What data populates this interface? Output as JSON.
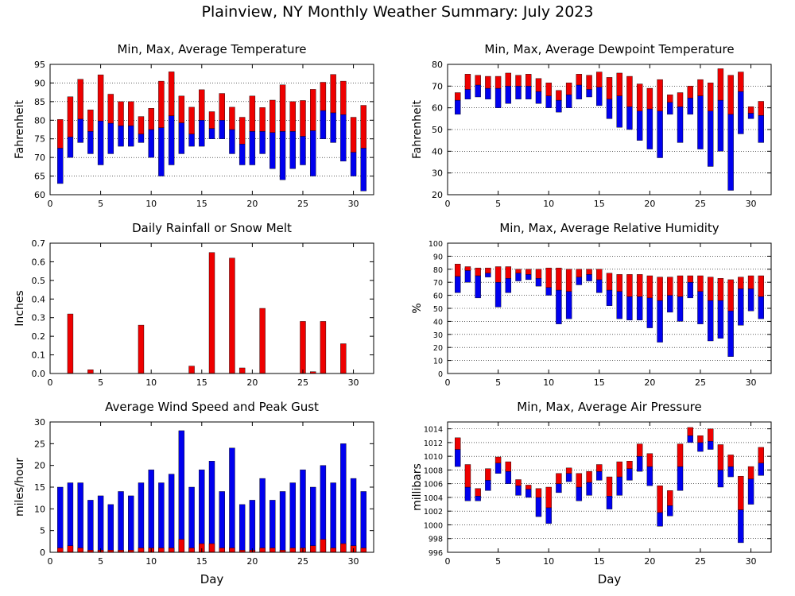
{
  "title": "Plainview, NY Monthly Weather Summary: July 2023",
  "colors": {
    "min_segment": "#0000ee",
    "max_segment": "#ee0000",
    "frame": "#000000",
    "grid": "#000000"
  },
  "chart_data": [
    {
      "type": "bar",
      "title": "Min, Max, Average Temperature",
      "xlabel": "",
      "ylabel": "Fahrenheit",
      "xlim": [
        0,
        32
      ],
      "ylim": [
        60,
        95
      ],
      "xticks": [
        0,
        5,
        10,
        15,
        20,
        25,
        30
      ],
      "yticks": [
        60,
        65,
        70,
        75,
        80,
        85,
        90,
        95
      ],
      "grid": true,
      "x": [
        1,
        2,
        3,
        4,
        5,
        6,
        7,
        8,
        9,
        10,
        11,
        12,
        13,
        14,
        15,
        16,
        17,
        18,
        19,
        20,
        21,
        22,
        23,
        24,
        25,
        26,
        27,
        28,
        29,
        30,
        31
      ],
      "series": [
        {
          "role": "min",
          "values": [
            63,
            70,
            74,
            71,
            68,
            71,
            73,
            73,
            74,
            70,
            65,
            68,
            71,
            73,
            73,
            75,
            75,
            71,
            68,
            68,
            71,
            67,
            64,
            67,
            68,
            65,
            75,
            74,
            69,
            65,
            61
          ]
        },
        {
          "role": "avg",
          "values": [
            72.5,
            75.5,
            80.3,
            77,
            79.8,
            79.2,
            78.5,
            78.5,
            76.3,
            77.5,
            78,
            81.2,
            79.3,
            76.3,
            80,
            77.8,
            80,
            77.5,
            73.6,
            77,
            77,
            76.7,
            77,
            77,
            75.7,
            77.2,
            82.6,
            82,
            81.5,
            71.4,
            72.5
          ]
        },
        {
          "role": "max",
          "values": [
            80.2,
            86.3,
            91,
            82.8,
            92.2,
            87,
            85,
            85,
            81,
            83.2,
            90.5,
            93,
            86.5,
            83.5,
            88.2,
            82.3,
            87.2,
            83.5,
            80.8,
            86.5,
            83.4,
            85.4,
            89.5,
            85,
            85.3,
            88.3,
            90.2,
            92.3,
            90.5,
            80.8,
            84
          ]
        }
      ]
    },
    {
      "type": "bar",
      "title": "Min, Max, Average Dewpoint Temperature",
      "xlabel": "",
      "ylabel": "Fahrenheit",
      "xlim": [
        0,
        32
      ],
      "ylim": [
        20,
        80
      ],
      "xticks": [
        0,
        5,
        10,
        15,
        20,
        25,
        30
      ],
      "yticks": [
        20,
        30,
        40,
        50,
        60,
        70,
        80
      ],
      "grid": true,
      "x": [
        1,
        2,
        3,
        4,
        5,
        6,
        7,
        8,
        9,
        10,
        11,
        12,
        13,
        14,
        15,
        16,
        17,
        18,
        19,
        20,
        21,
        22,
        23,
        24,
        25,
        26,
        27,
        28,
        29,
        30,
        31
      ],
      "series": [
        {
          "role": "min",
          "values": [
            57,
            64,
            65,
            64,
            60,
            62,
            64,
            64,
            62,
            60,
            58,
            60,
            64,
            65,
            61,
            55,
            51,
            50,
            45,
            41,
            37,
            57,
            44,
            57,
            41,
            33,
            40,
            22,
            48,
            55,
            44
          ]
        },
        {
          "role": "avg",
          "values": [
            63.5,
            68.5,
            70.5,
            69,
            69,
            70,
            70,
            70,
            67.5,
            65.5,
            63.5,
            66,
            70.5,
            68.5,
            69.5,
            64,
            65.5,
            60.5,
            58.5,
            59.5,
            58.5,
            62.5,
            60.5,
            64.5,
            65.5,
            58.5,
            63.5,
            57,
            67.5,
            57.5,
            56.5
          ]
        },
        {
          "role": "max",
          "values": [
            67,
            75.5,
            75,
            74.5,
            74.5,
            76,
            75,
            75.5,
            73.5,
            71.5,
            68,
            71.5,
            75.5,
            75,
            76.5,
            74,
            76,
            74.5,
            71,
            69,
            73,
            66,
            67,
            70,
            73,
            71.5,
            78,
            75,
            76.5,
            60.5,
            63
          ]
        }
      ]
    },
    {
      "type": "bar",
      "title": "Daily Rainfall or Snow Melt",
      "xlabel": "",
      "ylabel": "Inches",
      "xlim": [
        0,
        32
      ],
      "ylim": [
        0,
        0.7
      ],
      "xticks": [
        0,
        5,
        10,
        15,
        20,
        25,
        30
      ],
      "yticks": [
        0,
        0.1,
        0.2,
        0.3,
        0.4,
        0.5,
        0.6,
        0.7
      ],
      "ytick_labels": [
        "0.0",
        "0.1",
        "0.2",
        "0.3",
        "0.4",
        "0.5",
        "0.6",
        "0.7"
      ],
      "grid": false,
      "x": [
        1,
        2,
        3,
        4,
        5,
        6,
        7,
        8,
        9,
        10,
        11,
        12,
        13,
        14,
        15,
        16,
        17,
        18,
        19,
        20,
        21,
        22,
        23,
        24,
        25,
        26,
        27,
        28,
        29,
        30,
        31
      ],
      "series": [
        {
          "role": "rain",
          "values": [
            0,
            0.32,
            0,
            0.02,
            0,
            0,
            0,
            0,
            0.26,
            0,
            0,
            0,
            0,
            0.04,
            0,
            0.65,
            0,
            0.62,
            0.03,
            0,
            0.35,
            0,
            0,
            0,
            0.28,
            0.01,
            0.28,
            0,
            0.16,
            0,
            0
          ]
        }
      ]
    },
    {
      "type": "bar",
      "title": "Min, Max, Average Relative Humidity",
      "xlabel": "",
      "ylabel": "%",
      "xlim": [
        0,
        32
      ],
      "ylim": [
        0,
        100
      ],
      "xticks": [
        0,
        5,
        10,
        15,
        20,
        25,
        30
      ],
      "yticks": [
        0,
        10,
        20,
        30,
        40,
        50,
        60,
        70,
        80,
        90,
        100
      ],
      "grid": true,
      "x": [
        1,
        2,
        3,
        4,
        5,
        6,
        7,
        8,
        9,
        10,
        11,
        12,
        13,
        14,
        15,
        16,
        17,
        18,
        19,
        20,
        21,
        22,
        23,
        24,
        25,
        26,
        27,
        28,
        29,
        30,
        31
      ],
      "series": [
        {
          "role": "min",
          "values": [
            62,
            70,
            58,
            74,
            51,
            62,
            71,
            72,
            67,
            60,
            38,
            42,
            68,
            71,
            62,
            52,
            42,
            41,
            41,
            35,
            24,
            47,
            40,
            58,
            38,
            25,
            27,
            13,
            37,
            48,
            42
          ]
        },
        {
          "role": "avg",
          "values": [
            74.5,
            79,
            75,
            77,
            70,
            73,
            77,
            76,
            73,
            66,
            64,
            63,
            74,
            76,
            72,
            64,
            63,
            59,
            59,
            58,
            56,
            60,
            59,
            70,
            63,
            56,
            56,
            48,
            65,
            65,
            59
          ]
        },
        {
          "role": "max",
          "values": [
            84,
            82,
            81,
            81,
            82,
            82,
            80,
            80,
            80,
            81,
            81,
            80,
            80,
            80,
            80,
            77,
            76,
            76,
            76,
            75,
            74,
            74,
            75,
            75,
            75,
            74,
            73,
            72,
            74,
            75,
            75
          ]
        }
      ]
    },
    {
      "type": "bar",
      "title": "Average Wind Speed and Peak Gust",
      "xlabel": "Day",
      "ylabel": "miles/hour",
      "xlim": [
        0,
        32
      ],
      "ylim": [
        0,
        30
      ],
      "xticks": [
        0,
        5,
        10,
        15,
        20,
        25,
        30
      ],
      "yticks": [
        0,
        5,
        10,
        15,
        20,
        25,
        30
      ],
      "grid": false,
      "x": [
        1,
        2,
        3,
        4,
        5,
        6,
        7,
        8,
        9,
        10,
        11,
        12,
        13,
        14,
        15,
        16,
        17,
        18,
        19,
        20,
        21,
        22,
        23,
        24,
        25,
        26,
        27,
        28,
        29,
        30,
        31
      ],
      "series": [
        {
          "role": "avg_speed",
          "values": [
            1,
            1.5,
            1,
            0.5,
            0.5,
            0.5,
            0.5,
            0.5,
            1,
            1,
            1,
            1,
            3,
            1,
            2,
            2,
            1,
            1,
            0.5,
            0.5,
            1,
            1,
            0.5,
            1,
            1,
            1.5,
            3,
            1,
            2,
            1.5,
            1
          ]
        },
        {
          "role": "peak_gust",
          "values": [
            15,
            16,
            16,
            12,
            13,
            11,
            14,
            13,
            16,
            19,
            16,
            18,
            28,
            15,
            19,
            21,
            14,
            24,
            11,
            12,
            17,
            12,
            14,
            16,
            19,
            15,
            20,
            16,
            25,
            17,
            14
          ]
        }
      ]
    },
    {
      "type": "bar",
      "title": "Min, Max, Average Air Pressure",
      "xlabel": "Day",
      "ylabel": "millibars",
      "xlim": [
        0,
        32
      ],
      "ylim": [
        996,
        1015
      ],
      "xticks": [
        0,
        5,
        10,
        15,
        20,
        25,
        30
      ],
      "yticks": [
        996,
        998,
        1000,
        1002,
        1004,
        1006,
        1008,
        1010,
        1012,
        1014
      ],
      "grid": true,
      "x": [
        1,
        2,
        3,
        4,
        5,
        6,
        7,
        8,
        9,
        10,
        11,
        12,
        13,
        14,
        15,
        16,
        17,
        18,
        19,
        20,
        21,
        22,
        23,
        24,
        25,
        26,
        27,
        28,
        29,
        30,
        31
      ],
      "series": [
        {
          "role": "min",
          "values": [
            1008.5,
            1003.5,
            1003.5,
            1005,
            1007.5,
            1006,
            1004.3,
            1004,
            1001.2,
            1000.2,
            1004.7,
            1006.3,
            1003.5,
            1004.3,
            1006.5,
            1002.3,
            1004.3,
            1006.5,
            1007.8,
            1005.7,
            999.8,
            1001.3,
            1005,
            1012,
            1010.7,
            1011,
            1005.5,
            1007,
            997.4,
            1003,
            1007.2
          ]
        },
        {
          "role": "avg",
          "values": [
            1011,
            1005.5,
            1004.2,
            1006.5,
            1009,
            1007.8,
            1005.7,
            1005.2,
            1004,
            1002.5,
            1006,
            1007.5,
            1005.5,
            1006.2,
            1007.8,
            1004.2,
            1007,
            1008.2,
            1010,
            1008.5,
            1001.8,
            1002.8,
            1008.5,
            1013,
            1012,
            1012.2,
            1008,
            1008.5,
            1002.2,
            1006.7,
            1009
          ]
        },
        {
          "role": "max",
          "values": [
            1012.7,
            1008.8,
            1005.3,
            1008.2,
            1009.9,
            1009.2,
            1006.6,
            1005.8,
            1005.3,
            1005.5,
            1007.5,
            1008.3,
            1007.5,
            1007.8,
            1008.8,
            1007,
            1009.2,
            1009.3,
            1011.8,
            1010.4,
            1005.7,
            1005,
            1011.8,
            1014.2,
            1013,
            1014,
            1011.7,
            1010.2,
            1007.1,
            1008.5,
            1011.3
          ]
        }
      ]
    }
  ]
}
